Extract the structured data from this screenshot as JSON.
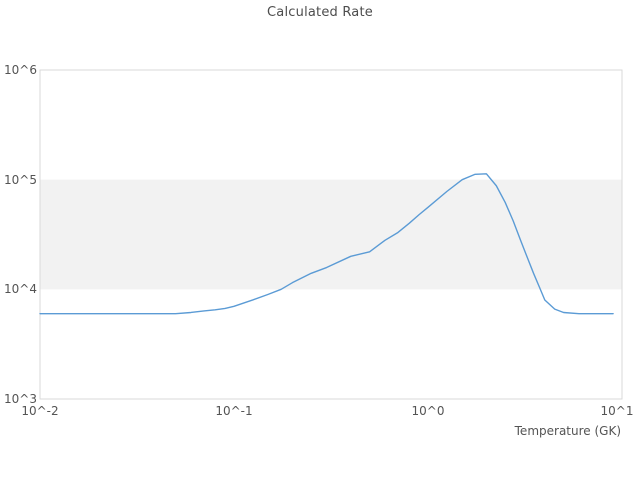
{
  "title": "Calculated Rate",
  "chart_data": {
    "type": "line",
    "title": "Calculated Rate",
    "xlabel": "Temperature (GK)",
    "ylabel": "",
    "x_scale": "log",
    "y_scale": "log",
    "xlim": [
      0.01,
      10
    ],
    "ylim": [
      1000,
      1000000
    ],
    "x_tick_labels": [
      "10^-2",
      "10^-1",
      "10^0",
      "10^1"
    ],
    "y_tick_labels": [
      "10^6",
      "10^5",
      "10^4",
      "10^3"
    ],
    "grid": "off",
    "legend": "none",
    "band": {
      "from": 10000,
      "to": 100000,
      "color": "#f2f2f2"
    },
    "line_color": "#5b9bd5",
    "border_color": "#d9d9d9",
    "series": [
      {
        "name": "Calculated Rate",
        "x": [
          0.01,
          0.015,
          0.02,
          0.03,
          0.04,
          0.05,
          0.06,
          0.07,
          0.08,
          0.09,
          0.1,
          0.125,
          0.15,
          0.175,
          0.2,
          0.25,
          0.3,
          0.4,
          0.5,
          0.6,
          0.7,
          0.8,
          0.9,
          1.0,
          1.25,
          1.5,
          1.75,
          2.0,
          2.25,
          2.5,
          2.75,
          3.0,
          3.25,
          3.5,
          3.75,
          4.0,
          4.5,
          5.0,
          6.0,
          7.0,
          8.0,
          9.0
        ],
        "y": [
          6000,
          6000,
          6000,
          6000,
          6000,
          6000,
          6150,
          6350,
          6500,
          6700,
          7000,
          8000,
          9000,
          10000,
          11500,
          14000,
          15800,
          20000,
          22000,
          28000,
          33000,
          40000,
          48000,
          56000,
          78000,
          100000,
          112000,
          113000,
          88000,
          62000,
          42000,
          28000,
          19500,
          14000,
          10500,
          8000,
          6600,
          6150,
          6000,
          6000,
          6000,
          6000
        ]
      }
    ]
  }
}
